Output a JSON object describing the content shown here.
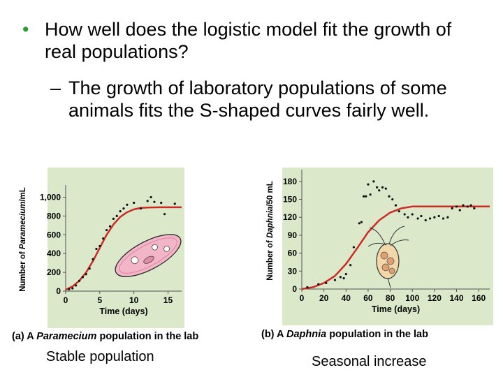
{
  "slide": {
    "bullet1": "How well does the logistic model fit the growth of real populations?",
    "bullet1_marker": "•",
    "bullet2": "The growth of laboratory populations of some animals fits the S-shaped curves fairly well.",
    "bullet2_marker": "–"
  },
  "captions": {
    "a_prefix": "(a) A ",
    "a_italic": "Paramecium",
    "a_suffix": " population in the lab",
    "b_prefix": "(b) A ",
    "b_italic": "Daphnia",
    "b_suffix": " population in the lab",
    "note_a": "Stable population",
    "note_b": "Seasonal increase"
  },
  "colors": {
    "panel_bg": "#dbe8c9",
    "curve": "#cc2a24",
    "points": "#111111",
    "bullet": "#2a9e3a"
  },
  "chart_data": [
    {
      "type": "scatter",
      "title": "",
      "xlabel": "Time (days)",
      "ylabel_prefix": "Number of ",
      "ylabel_italic": "Paramecium",
      "ylabel_suffix": "/mL",
      "xlim": [
        0,
        17
      ],
      "ylim": [
        0,
        1100
      ],
      "x_ticks": [
        0,
        5,
        10,
        15
      ],
      "y_ticks": [
        0,
        200,
        400,
        600,
        800,
        1000
      ],
      "y_tick_labels": [
        "0",
        "200",
        "400",
        "600",
        "800",
        "1,000"
      ],
      "grid": false,
      "series": [
        {
          "kind": "points",
          "x": [
            0.5,
            1,
            1.5,
            2,
            2.5,
            3,
            3.5,
            4,
            4.5,
            5,
            5.5,
            6,
            6.5,
            7,
            7.5,
            8,
            8.5,
            9,
            10,
            11,
            12,
            12.5,
            13,
            14,
            14.5,
            16
          ],
          "y": [
            20,
            30,
            60,
            110,
            150,
            180,
            240,
            340,
            450,
            480,
            560,
            650,
            690,
            770,
            800,
            850,
            880,
            920,
            940,
            880,
            960,
            1000,
            950,
            940,
            820,
            930
          ]
        },
        {
          "kind": "line",
          "x": [
            0,
            1,
            2,
            3,
            4,
            5,
            6,
            7,
            8,
            9,
            10,
            11,
            12,
            13,
            14,
            15,
            16,
            17
          ],
          "y": [
            15,
            50,
            110,
            200,
            320,
            460,
            600,
            710,
            790,
            840,
            870,
            885,
            890,
            892,
            893,
            893,
            893,
            893
          ]
        }
      ]
    },
    {
      "type": "scatter",
      "title": "",
      "xlabel": "Time (days)",
      "ylabel_prefix": "Number of ",
      "ylabel_italic": "Daphnia",
      "ylabel_suffix": "/50 mL",
      "xlim": [
        0,
        170
      ],
      "ylim": [
        0,
        195
      ],
      "x_ticks": [
        0,
        20,
        40,
        60,
        80,
        100,
        120,
        140,
        160
      ],
      "y_ticks": [
        0,
        30,
        60,
        90,
        120,
        150,
        180
      ],
      "grid": false,
      "series": [
        {
          "kind": "points",
          "x": [
            5,
            15,
            22,
            30,
            35,
            38,
            40,
            44,
            47,
            52,
            54,
            56,
            58,
            60,
            62,
            65,
            68,
            70,
            73,
            76,
            79,
            82,
            85,
            88,
            93,
            96,
            100,
            105,
            108,
            112,
            116,
            120,
            124,
            128,
            132,
            136,
            140,
            143,
            146,
            150,
            153,
            156
          ],
          "y": [
            3,
            8,
            10,
            15,
            20,
            18,
            25,
            40,
            70,
            110,
            112,
            155,
            155,
            175,
            158,
            180,
            170,
            165,
            170,
            168,
            155,
            150,
            140,
            130,
            125,
            120,
            125,
            118,
            122,
            115,
            118,
            120,
            122,
            118,
            120,
            135,
            138,
            132,
            140,
            138,
            140,
            135
          ]
        },
        {
          "kind": "line",
          "x": [
            0,
            10,
            20,
            30,
            40,
            50,
            60,
            70,
            80,
            90,
            100,
            110,
            120,
            130,
            140,
            150,
            160,
            170
          ],
          "y": [
            0,
            3,
            10,
            22,
            42,
            68,
            95,
            115,
            128,
            135,
            138,
            138,
            138,
            138,
            138,
            138,
            138,
            138
          ]
        }
      ]
    }
  ]
}
